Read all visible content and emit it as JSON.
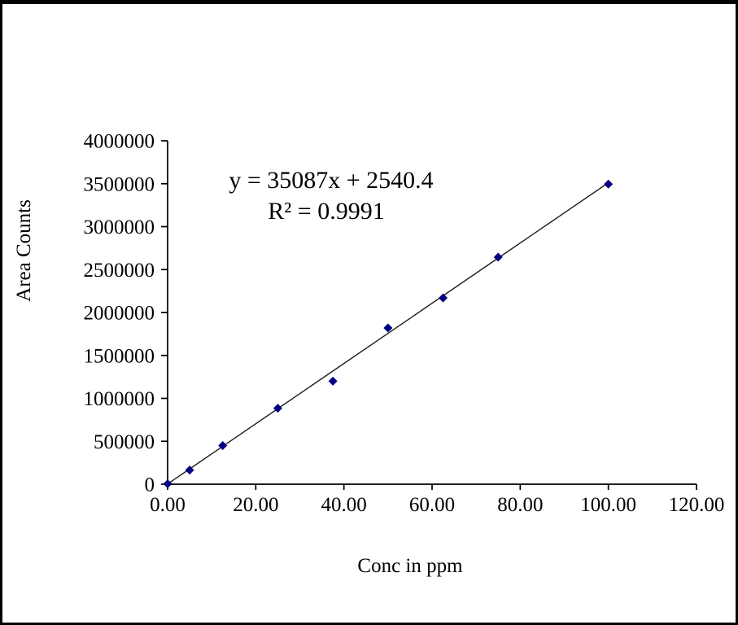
{
  "frame": {
    "background": "#ffffff",
    "border_color": "#000000"
  },
  "chart_data": {
    "type": "scatter",
    "title": "",
    "xlabel": "Conc in ppm",
    "ylabel": "Area Counts",
    "annotation": {
      "line1": "y = 35087x + 2540.4",
      "line2": "R² = 0.9991"
    },
    "x": [
      0,
      5,
      12.5,
      25,
      37.5,
      50,
      62.5,
      75,
      100
    ],
    "y": [
      5000,
      165000,
      450000,
      885000,
      1200000,
      1820000,
      2170000,
      2645000,
      3495000
    ],
    "trendline": {
      "type": "linear",
      "slope": 35087,
      "intercept": 2540.4,
      "x_range": [
        0,
        100
      ],
      "color": "#1a1a1a"
    },
    "xlim": [
      0,
      120
    ],
    "ylim": [
      0,
      4000000
    ],
    "x_ticks": [
      {
        "value": 0,
        "label": "0.00"
      },
      {
        "value": 20,
        "label": "20.00"
      },
      {
        "value": 40,
        "label": "40.00"
      },
      {
        "value": 60,
        "label": "60.00"
      },
      {
        "value": 80,
        "label": "80.00"
      },
      {
        "value": 100,
        "label": "100.00"
      },
      {
        "value": 120,
        "label": "120.00"
      }
    ],
    "y_ticks": [
      {
        "value": 0,
        "label": "0"
      },
      {
        "value": 500000,
        "label": "500000"
      },
      {
        "value": 1000000,
        "label": "1000000"
      },
      {
        "value": 1500000,
        "label": "1500000"
      },
      {
        "value": 2000000,
        "label": "2000000"
      },
      {
        "value": 2500000,
        "label": "2500000"
      },
      {
        "value": 3000000,
        "label": "3000000"
      },
      {
        "value": 3500000,
        "label": "3500000"
      },
      {
        "value": 4000000,
        "label": "4000000"
      }
    ],
    "grid": false,
    "legend": "none",
    "marker": {
      "shape": "diamond",
      "color": "#000080",
      "size": 11
    },
    "axis_color": "#000000"
  }
}
